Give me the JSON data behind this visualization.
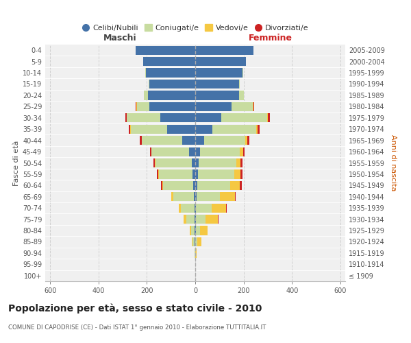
{
  "age_groups": [
    "100+",
    "95-99",
    "90-94",
    "85-89",
    "80-84",
    "75-79",
    "70-74",
    "65-69",
    "60-64",
    "55-59",
    "50-54",
    "45-49",
    "40-44",
    "35-39",
    "30-34",
    "25-29",
    "20-24",
    "15-19",
    "10-14",
    "5-9",
    "0-4"
  ],
  "birth_years": [
    "≤ 1909",
    "1910-1914",
    "1915-1919",
    "1920-1924",
    "1925-1929",
    "1930-1934",
    "1935-1939",
    "1940-1944",
    "1945-1949",
    "1950-1954",
    "1955-1959",
    "1960-1964",
    "1965-1969",
    "1970-1974",
    "1975-1979",
    "1980-1984",
    "1985-1989",
    "1990-1994",
    "1995-1999",
    "2000-2004",
    "2005-2009"
  ],
  "male": {
    "celibi": [
      0,
      0,
      0,
      2,
      2,
      3,
      4,
      6,
      8,
      10,
      15,
      25,
      55,
      115,
      145,
      190,
      195,
      190,
      205,
      215,
      245
    ],
    "coniugati": [
      0,
      0,
      2,
      8,
      15,
      35,
      55,
      85,
      125,
      140,
      148,
      155,
      165,
      152,
      138,
      52,
      16,
      3,
      1,
      0,
      0
    ],
    "vedovi": [
      0,
      0,
      1,
      4,
      7,
      10,
      9,
      7,
      4,
      3,
      3,
      2,
      1,
      2,
      1,
      1,
      0,
      0,
      0,
      0,
      0
    ],
    "divorziati": [
      0,
      0,
      0,
      0,
      0,
      0,
      1,
      2,
      5,
      5,
      6,
      6,
      7,
      5,
      4,
      2,
      1,
      0,
      0,
      0,
      0
    ]
  },
  "female": {
    "nubili": [
      0,
      0,
      0,
      1,
      2,
      2,
      4,
      6,
      8,
      10,
      15,
      20,
      38,
      72,
      108,
      150,
      180,
      180,
      195,
      210,
      240
    ],
    "coniugate": [
      0,
      0,
      1,
      8,
      18,
      40,
      65,
      95,
      135,
      150,
      155,
      165,
      170,
      180,
      190,
      88,
      20,
      4,
      2,
      0,
      0
    ],
    "vedove": [
      0,
      0,
      4,
      16,
      32,
      52,
      58,
      62,
      42,
      28,
      18,
      13,
      7,
      5,
      3,
      2,
      1,
      0,
      0,
      0,
      0
    ],
    "divorziate": [
      0,
      0,
      0,
      0,
      0,
      1,
      2,
      3,
      7,
      7,
      7,
      6,
      8,
      8,
      7,
      3,
      1,
      0,
      0,
      0,
      0
    ]
  },
  "colors": {
    "celibi": "#4472a8",
    "coniugati": "#c8dca0",
    "vedovi": "#f5c842",
    "divorziati": "#cc2222"
  },
  "xlim": 620,
  "title": "Popolazione per età, sesso e stato civile - 2010",
  "subtitle": "COMUNE DI CAPODRISE (CE) - Dati ISTAT 1° gennaio 2010 - Elaborazione TUTTITALIA.IT",
  "xlabel_left": "Maschi",
  "xlabel_right": "Femmine",
  "ylabel_left": "Fasce di età",
  "ylabel_right": "Anni di nascita",
  "legend_labels": [
    "Celibi/Nubili",
    "Coniugati/e",
    "Vedovi/e",
    "Divorziati/e"
  ],
  "bg_color": "#ffffff",
  "plot_bg": "#f0f0f0",
  "grid_color": "#cccccc"
}
